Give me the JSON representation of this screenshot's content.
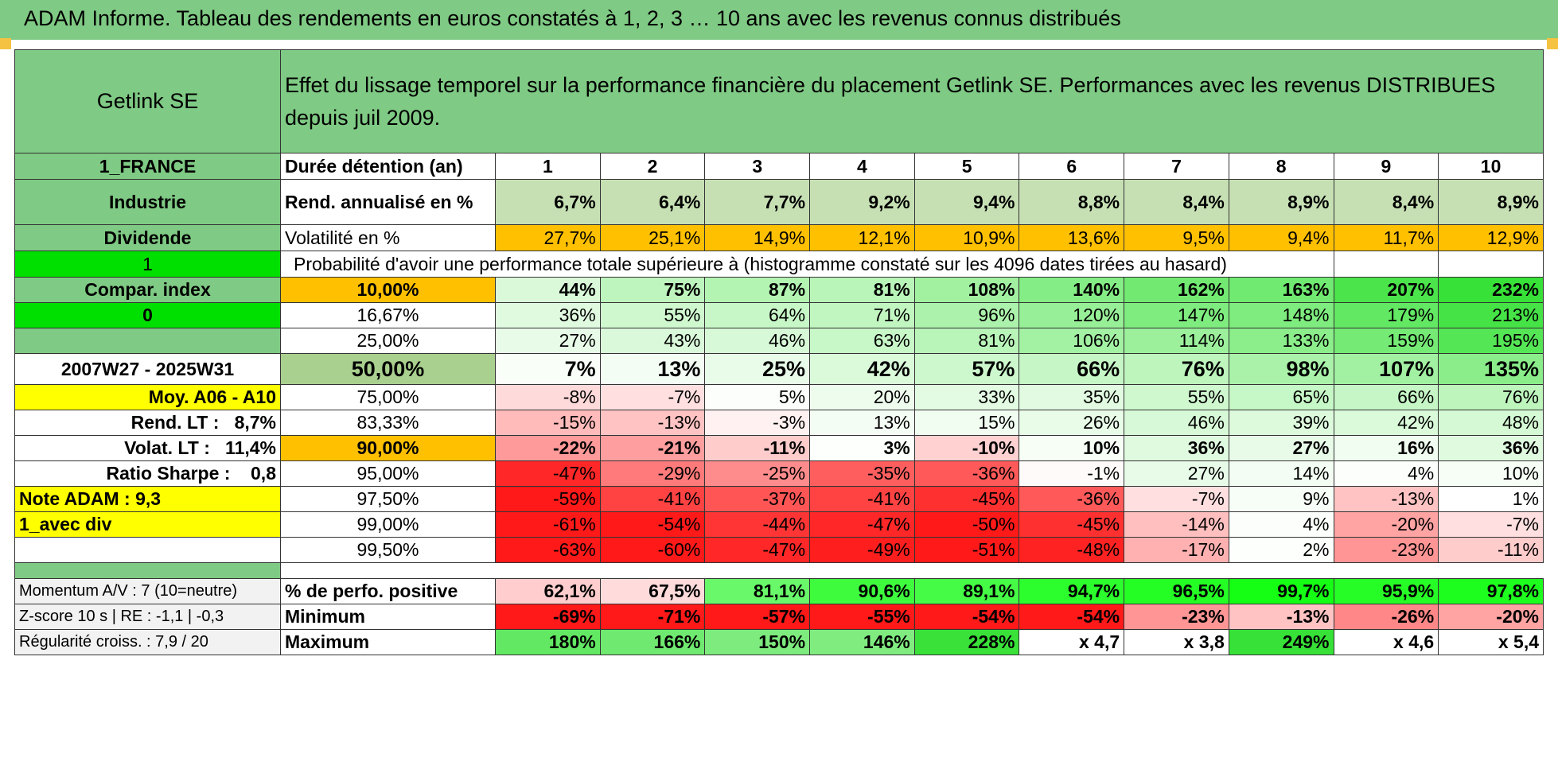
{
  "title": "ADAM Informe. Tableau des rendements en euros constatés à 1, 2, 3 … 10 ans avec les revenus connus distribués",
  "header": {
    "name": "Getlink SE",
    "description": "Effet du lissage temporel sur la performance financière du placement Getlink SE. Performances avec les revenus DISTRIBUES depuis juil 2009."
  },
  "side": {
    "country": "1_FRANCE",
    "sector": "Industrie",
    "type": "Dividende",
    "flag1": "1",
    "compar_label": "Compar. index",
    "flag2": "0",
    "period": "2007W27 - 2025W31",
    "moy": "Moy. A06 - A10",
    "rend_lt_label": "Rend. LT :",
    "rend_lt_value": "8,7%",
    "volat_lt_label": "Volat. LT :",
    "volat_lt_value": "11,4%",
    "sharpe_label": "Ratio Sharpe :",
    "sharpe_value": "0,8",
    "note": "Note ADAM : 9,3",
    "mode": "1_avec div"
  },
  "durations": {
    "label": "Durée détention (an)",
    "values": [
      "1",
      "2",
      "3",
      "4",
      "5",
      "6",
      "7",
      "8",
      "9",
      "10"
    ]
  },
  "rend": {
    "label": "Rend. annualisé en %",
    "values": [
      "6,7%",
      "6,4%",
      "7,7%",
      "9,2%",
      "9,4%",
      "8,8%",
      "8,4%",
      "8,9%",
      "8,4%",
      "8,9%"
    ]
  },
  "vol": {
    "label": "Volatilité en %",
    "values": [
      "27,7%",
      "25,1%",
      "14,9%",
      "12,1%",
      "10,9%",
      "13,6%",
      "9,5%",
      "9,4%",
      "11,7%",
      "12,9%"
    ]
  },
  "prob_header": "Probabilité d'avoir une performance totale supérieure à (histogramme constaté sur les 4096 dates tirées au hasard)",
  "prob_rows": [
    {
      "p": "10,00%",
      "values": [
        "44%",
        "75%",
        "87%",
        "81%",
        "108%",
        "140%",
        "162%",
        "163%",
        "207%",
        "232%"
      ]
    },
    {
      "p": "16,67%",
      "values": [
        "36%",
        "55%",
        "64%",
        "71%",
        "96%",
        "120%",
        "147%",
        "148%",
        "179%",
        "213%"
      ]
    },
    {
      "p": "25,00%",
      "values": [
        "27%",
        "43%",
        "46%",
        "63%",
        "81%",
        "106%",
        "114%",
        "133%",
        "159%",
        "195%"
      ]
    },
    {
      "p": "50,00%",
      "values": [
        "7%",
        "13%",
        "25%",
        "42%",
        "57%",
        "66%",
        "76%",
        "98%",
        "107%",
        "135%"
      ]
    },
    {
      "p": "75,00%",
      "values": [
        "-8%",
        "-7%",
        "5%",
        "20%",
        "33%",
        "35%",
        "55%",
        "65%",
        "66%",
        "76%"
      ]
    },
    {
      "p": "83,33%",
      "values": [
        "-15%",
        "-13%",
        "-3%",
        "13%",
        "15%",
        "26%",
        "46%",
        "39%",
        "42%",
        "48%"
      ]
    },
    {
      "p": "90,00%",
      "values": [
        "-22%",
        "-21%",
        "-11%",
        "3%",
        "-10%",
        "10%",
        "36%",
        "27%",
        "16%",
        "36%"
      ]
    },
    {
      "p": "95,00%",
      "values": [
        "-47%",
        "-29%",
        "-25%",
        "-35%",
        "-36%",
        "-1%",
        "27%",
        "14%",
        "4%",
        "10%"
      ]
    },
    {
      "p": "97,50%",
      "values": [
        "-59%",
        "-41%",
        "-37%",
        "-41%",
        "-45%",
        "-36%",
        "-7%",
        "9%",
        "-13%",
        "1%"
      ]
    },
    {
      "p": "99,00%",
      "values": [
        "-61%",
        "-54%",
        "-44%",
        "-47%",
        "-50%",
        "-45%",
        "-14%",
        "4%",
        "-20%",
        "-7%"
      ]
    },
    {
      "p": "99,50%",
      "values": [
        "-63%",
        "-60%",
        "-47%",
        "-49%",
        "-51%",
        "-48%",
        "-17%",
        "2%",
        "-23%",
        "-11%"
      ]
    }
  ],
  "footer": [
    {
      "left": "Momentum A/V : 7 (10=neutre)",
      "label": "% de perfo. positive",
      "values": [
        "62,1%",
        "67,5%",
        "81,1%",
        "90,6%",
        "89,1%",
        "94,7%",
        "96,5%",
        "99,7%",
        "95,9%",
        "97,8%"
      ]
    },
    {
      "left": "Z-score 10 s | RE : -1,1 | -0,3",
      "label": "Minimum",
      "values": [
        "-69%",
        "-71%",
        "-57%",
        "-55%",
        "-54%",
        "-54%",
        "-23%",
        "-13%",
        "-26%",
        "-20%"
      ]
    },
    {
      "left": "Régularité croiss. : 7,9 / 20",
      "label": "Maximum",
      "values": [
        "180%",
        "166%",
        "150%",
        "146%",
        "228%",
        "x 4,7",
        "x 3,8",
        "249%",
        "x 4,6",
        "x 5,4"
      ]
    }
  ],
  "colors": {
    "header_green": "#7fca84",
    "bright_green": "#00e000",
    "yellow": "#ffff00",
    "orange": "#ffc000",
    "label_red": "#e00000"
  }
}
